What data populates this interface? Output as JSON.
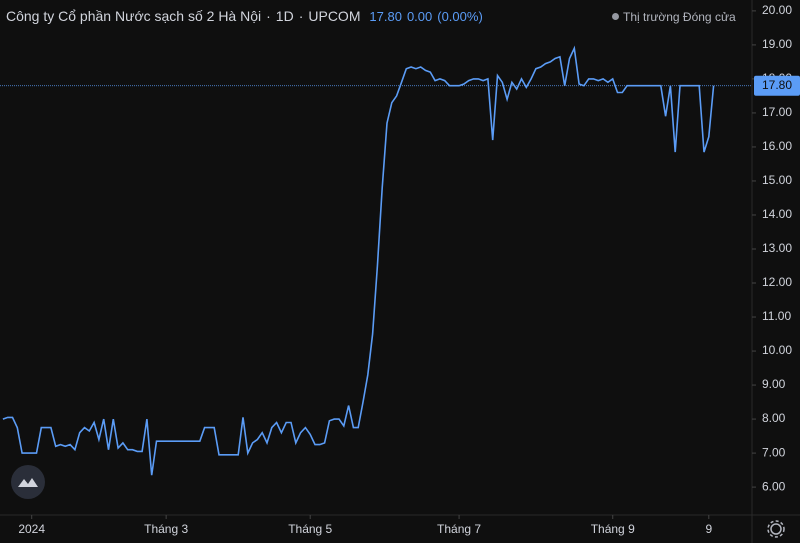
{
  "header": {
    "title": "Công ty Cổ phần Nước sạch số 2 Hà Nội",
    "separator": "·",
    "interval": "1D",
    "exchange": "UPCOM",
    "price": "17.80",
    "change": "0.00",
    "change_pct": "(0.00%)",
    "market_status": "Thị trường Đóng cửa"
  },
  "chart_data": {
    "type": "line",
    "series": [
      {
        "color": "#5b9cf6",
        "values": [
          8.0,
          8.05,
          8.05,
          7.75,
          7.0,
          7.0,
          7.0,
          7.0,
          7.75,
          7.75,
          7.75,
          7.2,
          7.25,
          7.2,
          7.25,
          7.1,
          7.6,
          7.75,
          7.65,
          7.9,
          7.4,
          8.0,
          7.1,
          8.0,
          7.15,
          7.3,
          7.1,
          7.1,
          7.05,
          7.05,
          8.0,
          6.35,
          7.35,
          7.35,
          7.35,
          7.35,
          7.35,
          7.35,
          7.35,
          7.35,
          7.35,
          7.35,
          7.75,
          7.75,
          7.75,
          6.95,
          6.95,
          6.95,
          6.95,
          6.95,
          8.05,
          7.0,
          7.3,
          7.4,
          7.6,
          7.3,
          7.75,
          7.9,
          7.6,
          7.9,
          7.9,
          7.3,
          7.6,
          7.75,
          7.55,
          7.25,
          7.25,
          7.3,
          7.95,
          8.0,
          8.0,
          7.8,
          8.4,
          7.75,
          7.75,
          8.5,
          9.3,
          10.5,
          12.5,
          14.8,
          16.7,
          17.3,
          17.5,
          17.9,
          18.3,
          18.35,
          18.3,
          18.35,
          18.25,
          18.2,
          17.95,
          18.0,
          17.95,
          17.8,
          17.8,
          17.8,
          17.85,
          17.95,
          18.0,
          18.0,
          17.95,
          18.0,
          16.2,
          18.1,
          17.9,
          17.4,
          17.9,
          17.7,
          18.0,
          17.75,
          18.0,
          18.3,
          18.35,
          18.45,
          18.5,
          18.6,
          18.65,
          17.8,
          18.6,
          18.9,
          17.85,
          17.8,
          18.0,
          18.0,
          17.95,
          18.0,
          17.9,
          18.0,
          17.6,
          17.6,
          17.8,
          17.8,
          17.8,
          17.8,
          17.8,
          17.8,
          17.8,
          17.8,
          16.9,
          17.8,
          15.85,
          17.8,
          17.8,
          17.8,
          17.8,
          17.8,
          15.85,
          16.3,
          17.8
        ]
      }
    ],
    "xlim": [
      -0.6,
      156
    ],
    "xticks": [
      {
        "value": 6,
        "label": "2024"
      },
      {
        "value": 34,
        "label": "Tháng 3"
      },
      {
        "value": 64,
        "label": "Tháng 5"
      },
      {
        "value": 95,
        "label": "Tháng 7"
      },
      {
        "value": 127,
        "label": "Tháng 9"
      },
      {
        "value": 147,
        "label": "9"
      }
    ],
    "ylim": [
      5.18,
      20.32
    ],
    "yticks": [
      {
        "value": 6,
        "label": "6.00"
      },
      {
        "value": 7,
        "label": "7.00"
      },
      {
        "value": 8,
        "label": "8.00"
      },
      {
        "value": 9,
        "label": "9.00"
      },
      {
        "value": 10,
        "label": "10.00"
      },
      {
        "value": 11,
        "label": "11.00"
      },
      {
        "value": 12,
        "label": "12.00"
      },
      {
        "value": 13,
        "label": "13.00"
      },
      {
        "value": 14,
        "label": "14.00"
      },
      {
        "value": 15,
        "label": "15.00"
      },
      {
        "value": 16,
        "label": "16.00"
      },
      {
        "value": 17,
        "label": "17.00"
      },
      {
        "value": 18,
        "label": "18.00"
      },
      {
        "value": 19,
        "label": "19.00"
      },
      {
        "value": 20,
        "label": "20.00"
      }
    ],
    "last_price": {
      "value": 17.8,
      "label": "17.80"
    }
  }
}
